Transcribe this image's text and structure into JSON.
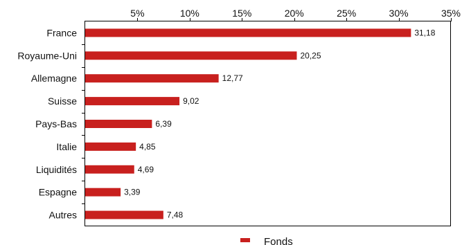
{
  "chart_data": {
    "type": "bar",
    "orientation": "horizontal",
    "categories": [
      "France",
      "Royaume-Uni",
      "Allemagne",
      "Suisse",
      "Pays-Bas",
      "Italie",
      "Liquidités",
      "Espagne",
      "Autres"
    ],
    "series": [
      {
        "name": "Fonds",
        "color": "#c8201e",
        "values": [
          31.18,
          20.25,
          12.77,
          9.02,
          6.39,
          4.85,
          4.69,
          3.39,
          7.48
        ],
        "value_labels": [
          "31,18",
          "20,25",
          "12,77",
          "9,02",
          "6,39",
          "4,85",
          "4,69",
          "3,39",
          "7,48"
        ]
      }
    ],
    "x_ticks": [
      5,
      10,
      15,
      20,
      25,
      30,
      35
    ],
    "x_tick_labels": [
      "5%",
      "10%",
      "15%",
      "20%",
      "25%",
      "30%",
      "35%"
    ],
    "xlim": [
      0,
      35
    ],
    "x_axis_position": "top",
    "grid": false,
    "legend_position": "bottom-center",
    "title": "",
    "xlabel": "",
    "ylabel": ""
  }
}
